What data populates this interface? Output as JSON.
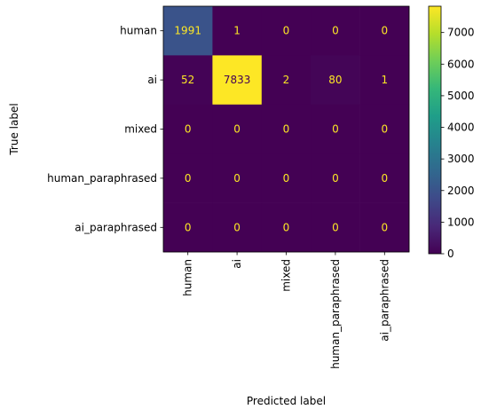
{
  "chart_data": {
    "type": "heatmap",
    "title": "",
    "xlabel": "Predicted label",
    "ylabel": "True label",
    "x_categories": [
      "human",
      "ai",
      "mixed",
      "human_paraphrased",
      "ai_paraphrased"
    ],
    "y_categories": [
      "human",
      "ai",
      "mixed",
      "human_paraphrased",
      "ai_paraphrased"
    ],
    "values": [
      [
        1991,
        1,
        0,
        0,
        0
      ],
      [
        52,
        7833,
        2,
        80,
        1
      ],
      [
        0,
        0,
        0,
        0,
        0
      ],
      [
        0,
        0,
        0,
        0,
        0
      ],
      [
        0,
        0,
        0,
        0,
        0
      ]
    ],
    "colormap": "viridis",
    "colorbar": {
      "range": [
        0,
        7833
      ],
      "ticks": [
        0,
        1000,
        2000,
        3000,
        4000,
        5000,
        6000,
        7000
      ]
    },
    "grid": false,
    "colors": {
      "low_text": "#fde725",
      "high_text": "#440154"
    }
  }
}
